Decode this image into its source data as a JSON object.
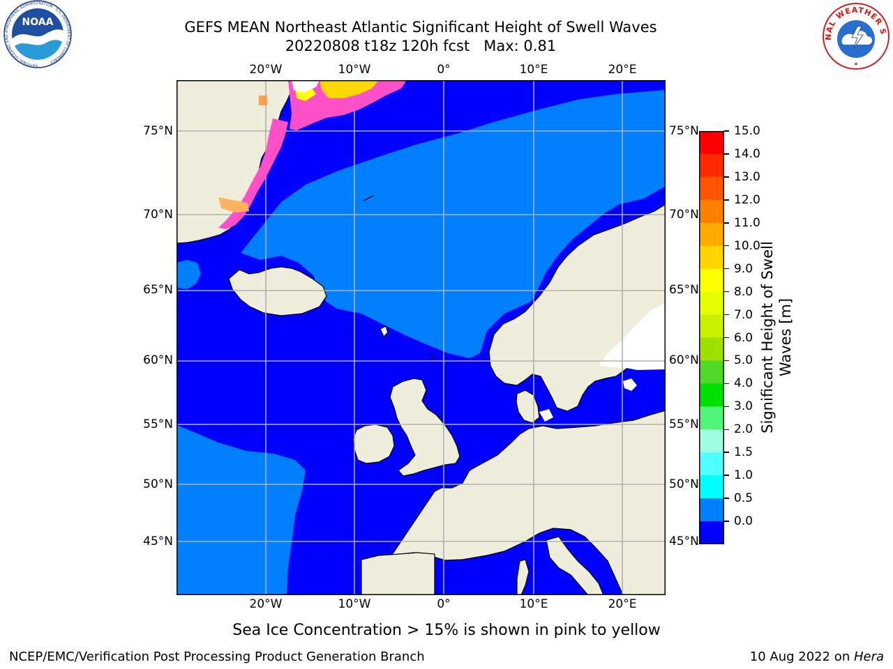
{
  "title": "GEFS MEAN Northeast Atlantic Significant Height of Swell Waves",
  "subtitle_date": "20220808 t18z 120h fcst",
  "subtitle_max": "Max: 0.81",
  "top_ticks": [
    "20°W",
    "10°W",
    "0°",
    "10°E",
    "20°E"
  ],
  "bottom_ticks": [
    "20°W",
    "10°W",
    "0°",
    "10°E",
    "20°E"
  ],
  "lat_ticks": [
    "75°N",
    "70°N",
    "65°N",
    "60°N",
    "55°N",
    "50°N",
    "45°N"
  ],
  "legend": {
    "label": "Significant Height of Swell Waves [m]",
    "ticks": [
      "15.0",
      "14.0",
      "13.0",
      "12.0",
      "11.0",
      "10.0",
      "9.0",
      "8.0",
      "7.0",
      "6.0",
      "5.0",
      "4.0",
      "3.0",
      "2.0",
      "1.5",
      "1.0",
      "0.5",
      "0.0"
    ],
    "colors": [
      "#ff0000",
      "#ff2a00",
      "#ff5400",
      "#ff7f00",
      "#ffaa00",
      "#ffd400",
      "#ffff00",
      "#e5ff00",
      "#c8f000",
      "#a0e000",
      "#50d828",
      "#00e000",
      "#50f578",
      "#a0ffe0",
      "#50ffff",
      "#00ffff",
      "#0080ff",
      "#0000ff"
    ]
  },
  "colors": {
    "land": "#efeedd",
    "deep_blue": "#0000ff",
    "mid_blue": "#0080ff",
    "ice_pink": "#ff50c8",
    "ice_yellow": "#ffd700",
    "grid": "#b0b0b0"
  },
  "logos": {
    "noaa_text": "NOAA",
    "noaa_ring": "NATIONAL OCEANIC AND ATMOSPHERIC ADMINISTRATION · U.S. DEPARTMENT OF COMMERCE",
    "nws_ring": "NATIONAL WEATHER SERVICE"
  },
  "footnote": "Sea Ice Concentration > 15% is shown in pink to yellow",
  "credit": "NCEP/EMC/Verification Post Processing Product Generation Branch",
  "date_text": "10 Aug 2022 on ",
  "date_machine": "Hera"
}
